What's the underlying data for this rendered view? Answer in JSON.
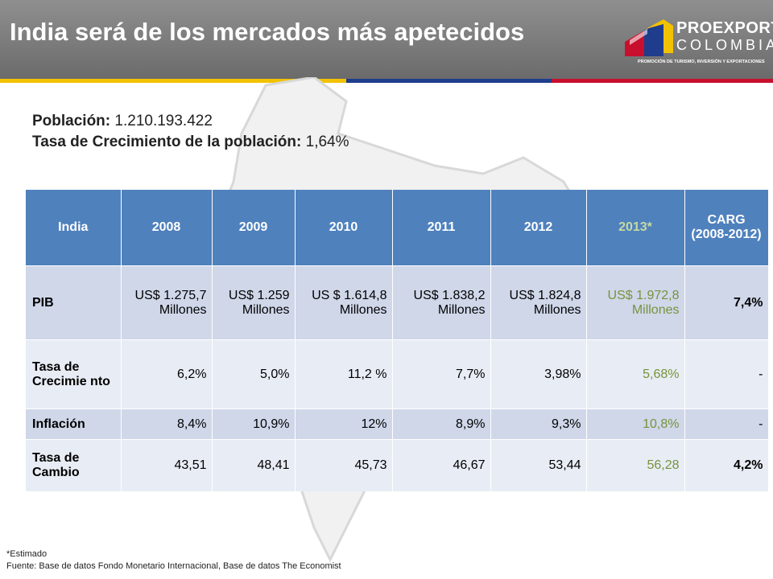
{
  "header": {
    "title": "India será de los mercados más apetecidos",
    "logo_line1": "PROEXPORT",
    "logo_line2": "COLOMBIA",
    "logo_tagline": "PROMOCIÓN DE TURISMO, INVERSIÓN Y EXPORTACIONES",
    "stripe_colors": [
      "#f2c200",
      "#1f3d8c",
      "#c8102e"
    ]
  },
  "info": {
    "population_label": "Población:",
    "population_value": "1.210.193.422",
    "growth_label": "Tasa de Crecimiento de la población:",
    "growth_value": "1,64%"
  },
  "table": {
    "headers": [
      "India",
      "2008",
      "2009",
      "2010",
      "2011",
      "2012",
      "2013*",
      "CARG (2008-2012)"
    ],
    "rows": [
      {
        "label": "PIB",
        "cells": [
          "US$ 1.275,7 Millones",
          "US$ 1.259 Millones",
          "US $ 1.614,8 Millones",
          "US$ 1.838,2 Millones",
          "US$ 1.824,8 Millones",
          "US$ 1.972,8 Millones",
          "7,4%"
        ]
      },
      {
        "label": "Tasa de Crecimie nto",
        "cells": [
          "6,2%",
          "5,0%",
          "11,2 %",
          "7,7%",
          "3,98%",
          "5,68%",
          "-"
        ]
      },
      {
        "label": "Inflación",
        "cells": [
          "8,4%",
          "10,9%",
          "12%",
          "8,9%",
          "9,3%",
          "10,8%",
          "-"
        ]
      },
      {
        "label": "Tasa de Cambio",
        "cells": [
          "43,51",
          "48,41",
          "45,73",
          "46,67",
          "53,44",
          "56,28",
          "4,2%"
        ]
      }
    ]
  },
  "footer": {
    "note": "*Estimado",
    "source": "Fuente: Base de datos Fondo Monetario Internacional, Base de datos The Economist"
  }
}
